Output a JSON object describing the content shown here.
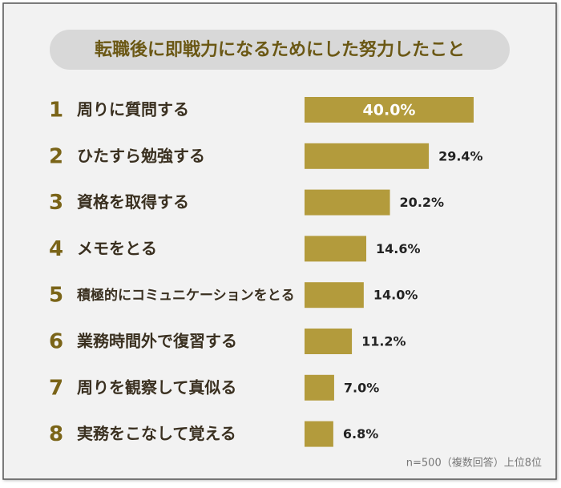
{
  "chart_data": {
    "type": "bar",
    "orientation": "horizontal",
    "title": "転職後に即戦力になるためにした努力したこと",
    "ranks": [
      1,
      2,
      3,
      4,
      5,
      6,
      7,
      8
    ],
    "categories": [
      "周りに質問する",
      "ひたすら勉強する",
      "資格を取得する",
      "メモをとる",
      "積極的にコミュニケーションをとる",
      "業務時間外で復習する",
      "周りを観察して真似る",
      "実務をこなして覚える"
    ],
    "values": [
      40.0,
      29.4,
      20.2,
      14.6,
      14.0,
      11.2,
      7.0,
      6.8
    ],
    "value_labels": [
      "40.0%",
      "29.4%",
      "20.2%",
      "14.6%",
      "14.0%",
      "11.2%",
      "7.0%",
      "6.8%"
    ],
    "color": "#b39b3c",
    "note": "n=500（複数回答）上位8位"
  }
}
